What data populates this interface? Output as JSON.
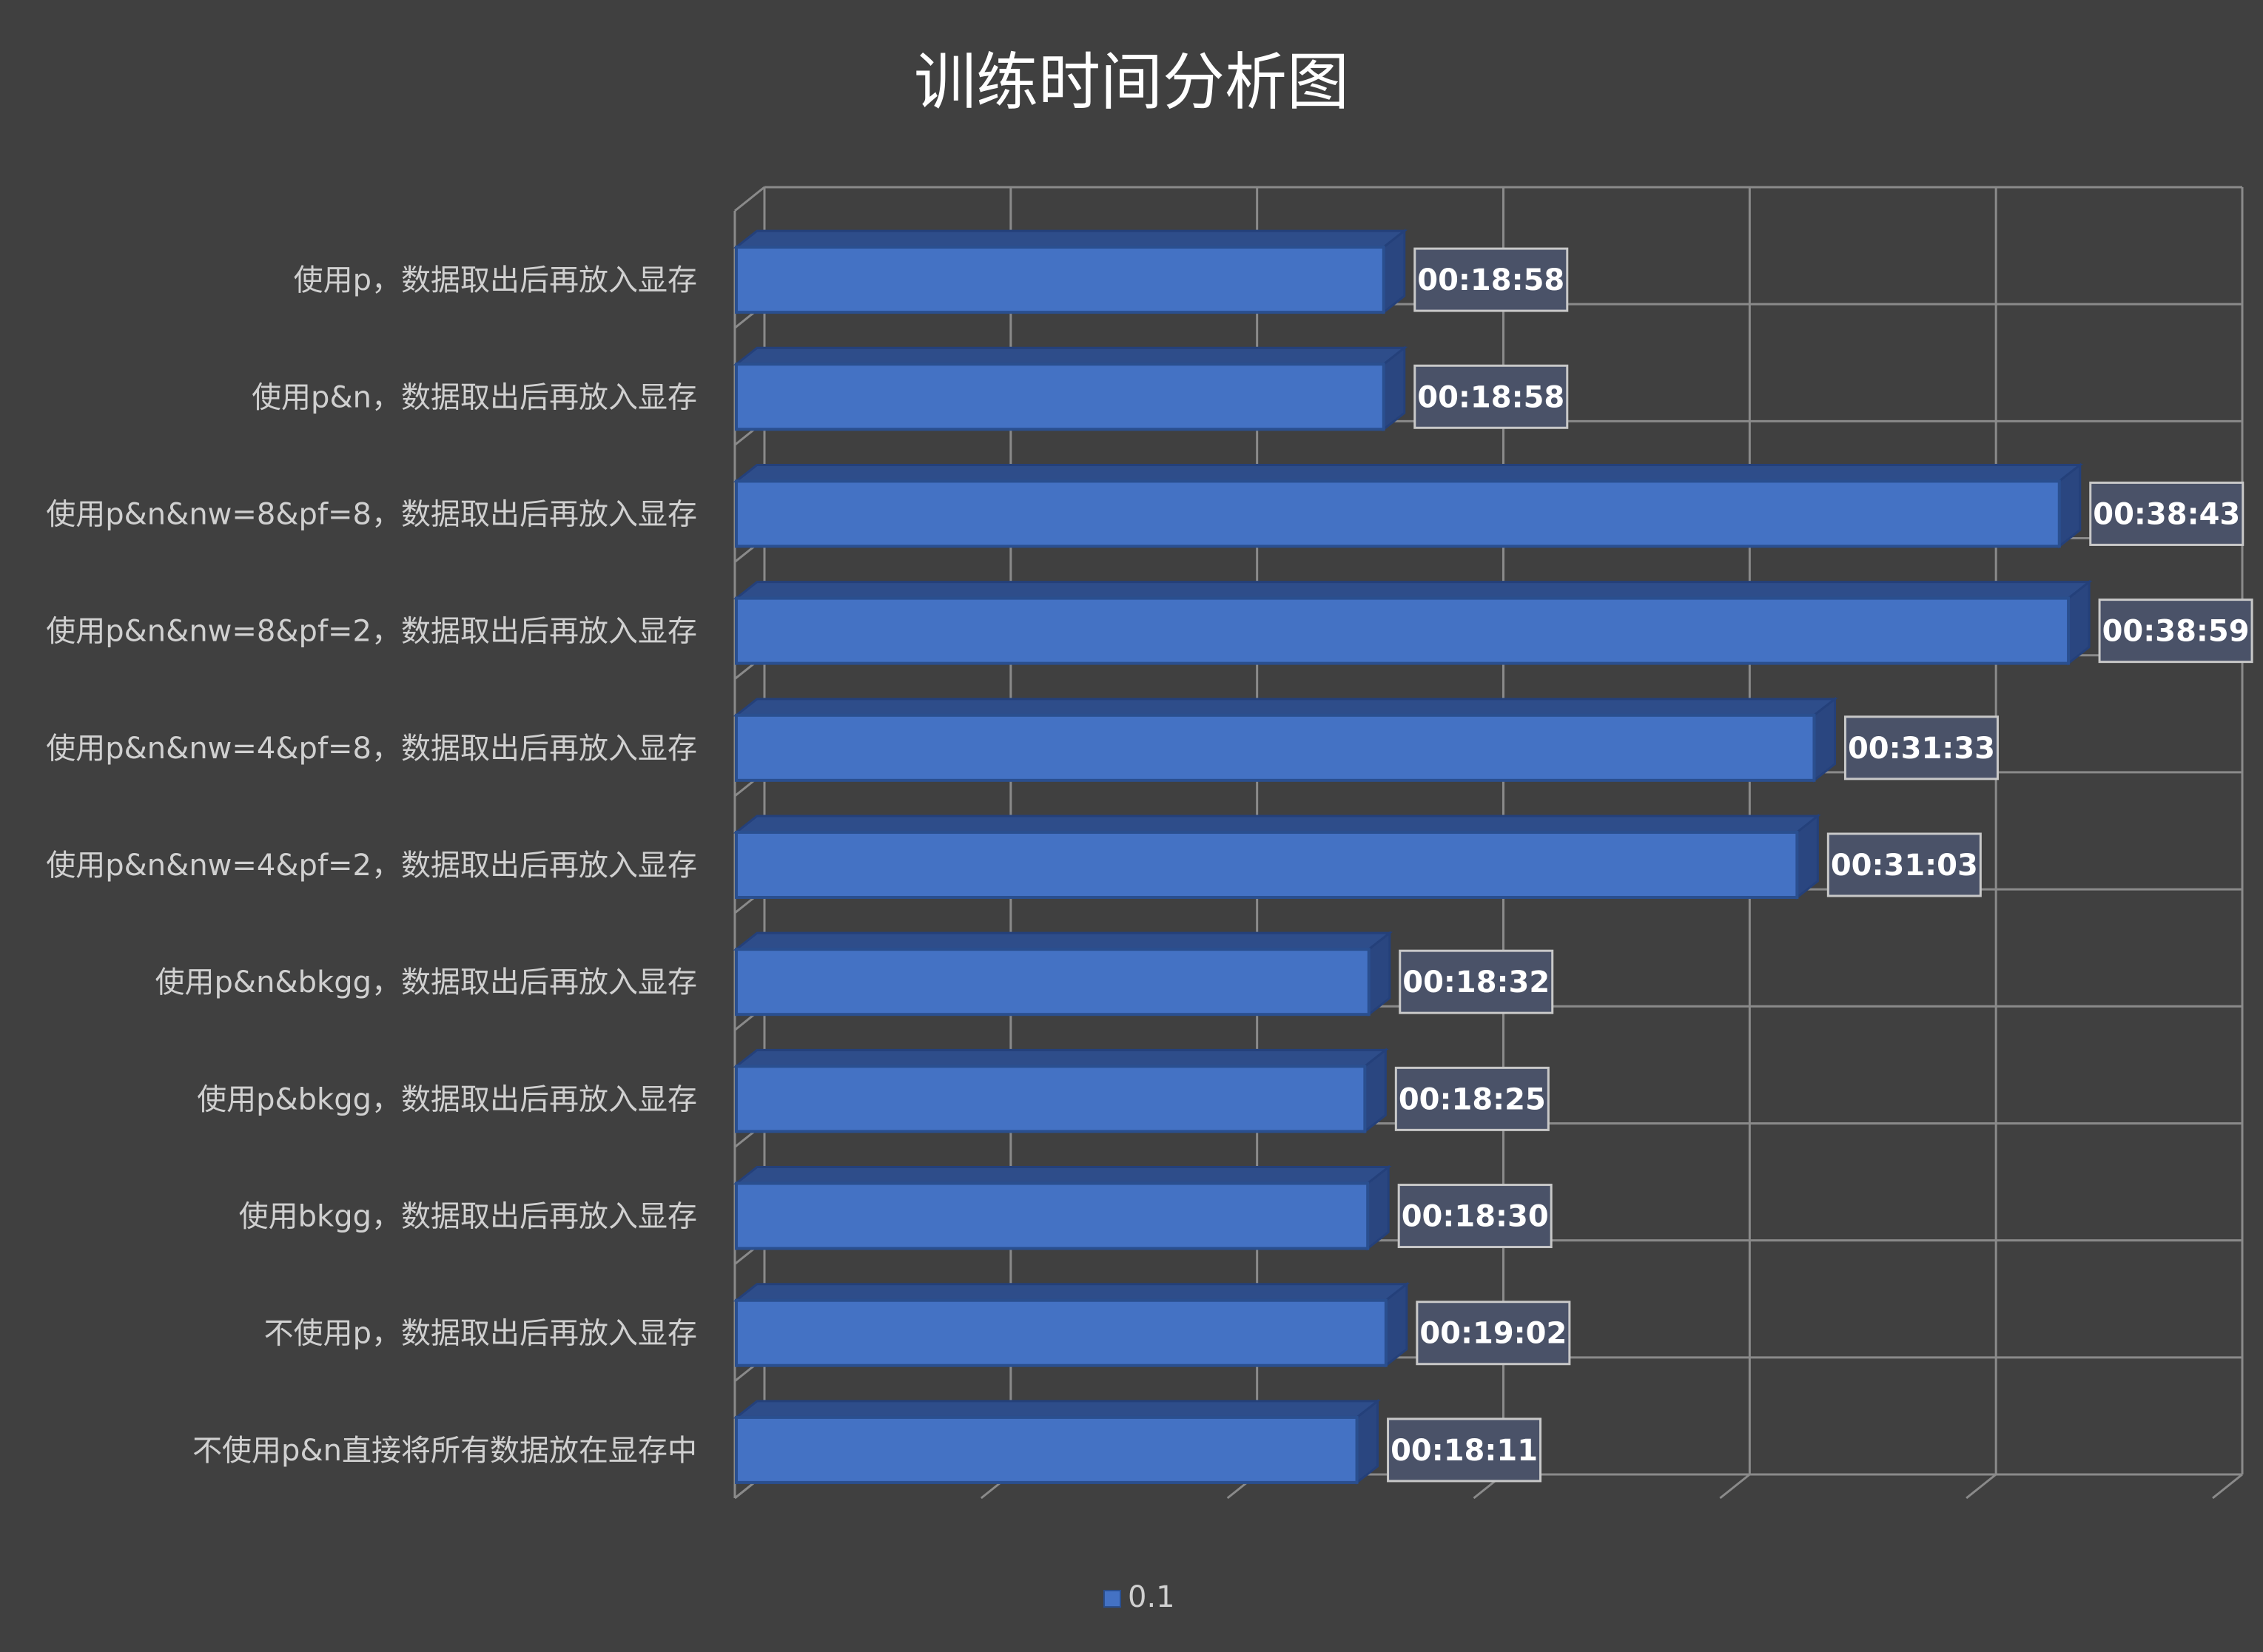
{
  "chart_data": {
    "type": "bar",
    "orientation": "horizontal",
    "style": "3d-clustered-bar",
    "title": "训练时间分析图",
    "categories": [
      "使用p，数据取出后再放入显存",
      "使用p&n，数据取出后再放入显存",
      "使用p&n&nw=8&pf=8，数据取出后再放入显存",
      "使用p&n&nw=8&pf=2，数据取出后再放入显存",
      "使用p&n&nw=4&pf=8，数据取出后再放入显存",
      "使用p&n&nw=4&pf=2，数据取出后再放入显存",
      "使用p&n&bkgg，数据取出后再放入显存",
      "使用p&bkgg，数据取出后再放入显存",
      "使用bkgg，数据取出后再放入显存",
      "不使用p，数据取出后再放入显存",
      "不使用p&n直接将所有数据放在显存中"
    ],
    "series": [
      {
        "name": "0.1",
        "values": [
          "00:18:58",
          "00:18:58",
          "00:38:43",
          "00:38:59",
          "00:31:33",
          "00:31:03",
          "00:18:32",
          "00:18:25",
          "00:18:30",
          "00:19:02",
          "00:18:11"
        ],
        "color": "#4472c4"
      }
    ],
    "value_unit": "hh:mm:ss",
    "xlim_seconds": [
      0,
      2592
    ],
    "x_gridlines": 6,
    "tick_labels_shown": false,
    "grid": true,
    "legend_position": "bottom"
  }
}
